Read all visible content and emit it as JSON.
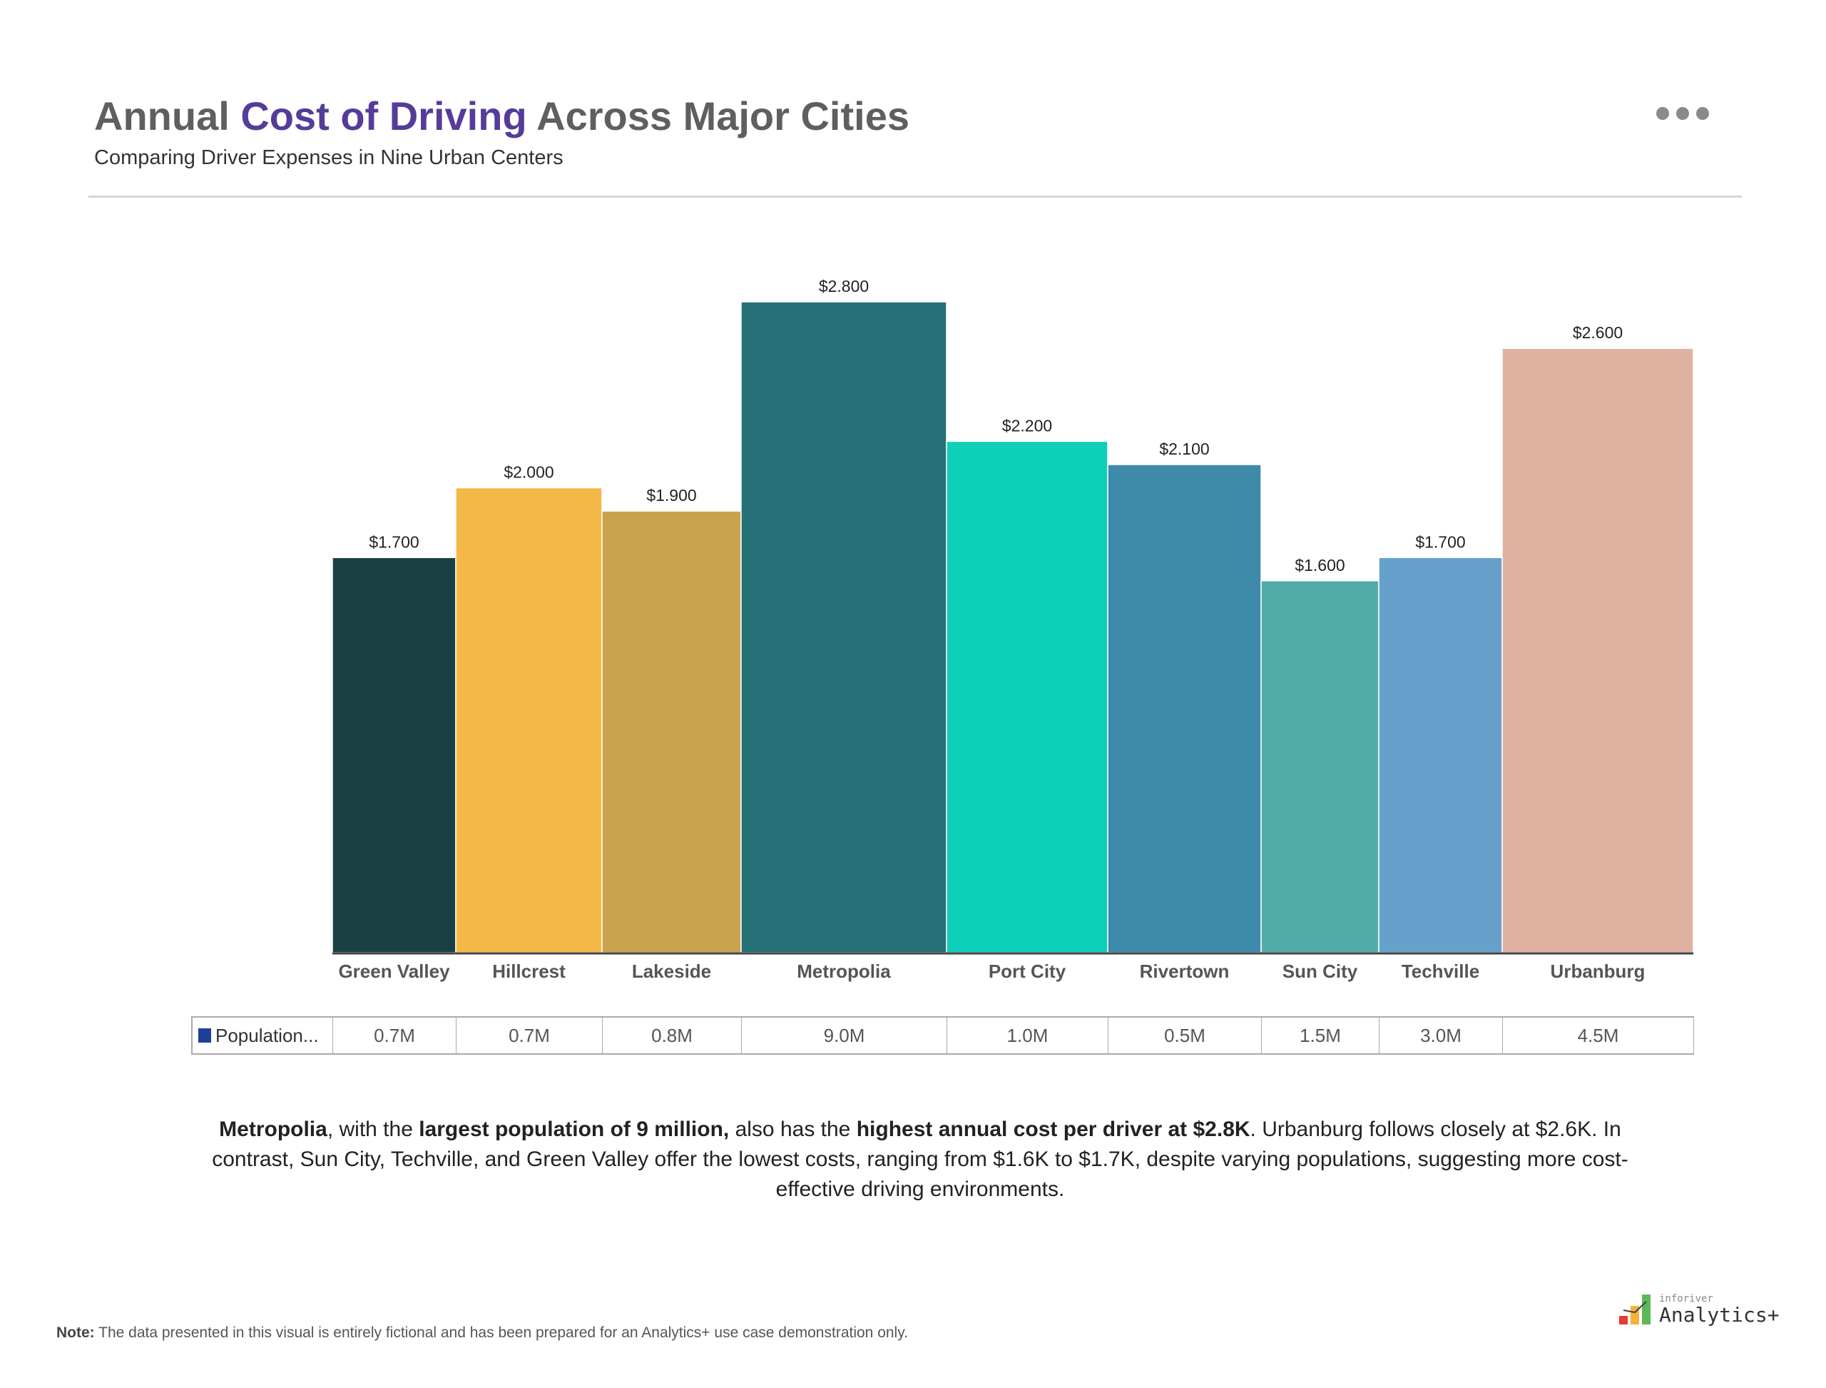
{
  "header": {
    "title_pre": "Annual ",
    "title_highlight": "Cost of Driving",
    "title_post": " Across Major Cities",
    "subtitle": "Comparing Driver Expenses in Nine Urban Centers",
    "menu_icon": "more-horizontal-icon",
    "highlight_color": "#553c9a"
  },
  "chart_data": {
    "type": "bar",
    "categories": [
      "Green Valley",
      "Hillcrest",
      "Lakeside",
      "Metropolia",
      "Port City",
      "Rivertown",
      "Sun City",
      "Techville",
      "Urbanburg"
    ],
    "values": [
      1.7,
      2.0,
      1.9,
      2.8,
      2.2,
      2.1,
      1.6,
      1.7,
      2.6
    ],
    "data_labels": [
      "$1.700",
      "$2.000",
      "$1.900",
      "$2.800",
      "$2.200",
      "$2.100",
      "$1.600",
      "$1.700",
      "$2.600"
    ],
    "colors": [
      "#1b4044",
      "#f4b848",
      "#c8a24c",
      "#267078",
      "#0ecfb7",
      "#3e8aab",
      "#51aba8",
      "#67a1cb",
      "#dfb2a2"
    ],
    "ylim": [
      0,
      2.8
    ],
    "grid": false,
    "title": "",
    "xlabel": "",
    "ylabel": ""
  },
  "table": {
    "row_label": "Population...",
    "row_color": "#1f3f99",
    "values": [
      "0.7M",
      "0.7M",
      "0.8M",
      "9.0M",
      "1.0M",
      "0.5M",
      "1.5M",
      "3.0M",
      "4.5M"
    ]
  },
  "narrative": {
    "p1": "Metropolia",
    "p2": ", with the ",
    "p3": "largest population of 9 million,",
    "p4": " also has the ",
    "p5": "highest annual cost per driver at $2.8K",
    "p6": ". Urbanburg follows closely at $2.6K. In contrast, Sun City, Techville, and Green Valley offer the lowest costs, ranging from $1.6K to $1.7K, despite varying populations, suggesting more cost-effective driving environments."
  },
  "note": {
    "label": "Note:",
    "text": " The data presented in this visual is entirely fictional and has been prepared for an Analytics+ use case demonstration only."
  },
  "logo": {
    "small": "inforiver",
    "big": "Analytics+"
  }
}
